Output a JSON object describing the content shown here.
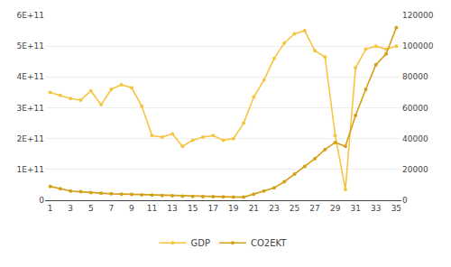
{
  "chart_data": {
    "type": "line",
    "x": [
      1,
      2,
      3,
      4,
      5,
      6,
      7,
      8,
      9,
      10,
      11,
      12,
      13,
      14,
      15,
      16,
      17,
      18,
      19,
      20,
      21,
      22,
      23,
      24,
      25,
      26,
      27,
      28,
      29,
      30,
      31,
      32,
      33,
      34,
      35
    ],
    "series": [
      {
        "name": "GDP",
        "color": "#F5C542",
        "values": [
          350000000000.0,
          340000000000.0,
          330000000000.0,
          325000000000.0,
          355000000000.0,
          310000000000.0,
          360000000000.0,
          375000000000.0,
          365000000000.0,
          305000000000.0,
          210000000000.0,
          205000000000.0,
          215000000000.0,
          175000000000.0,
          195000000000.0,
          205000000000.0,
          210000000000.0,
          195000000000.0,
          200000000000.0,
          250000000000.0,
          335000000000.0,
          390000000000.0,
          460000000000.0,
          510000000000.0,
          540000000000.0,
          550000000000.0,
          485000000000.0,
          465000000000.0,
          210000000000.0,
          35000000000.0,
          430000000000.0,
          490000000000.0,
          500000000000.0,
          490000000000.0,
          500000000000.0
        ]
      },
      {
        "name": "CO2EKT",
        "color": "#D4A017",
        "axis": "y2",
        "values": [
          9000,
          7500,
          6000,
          5500,
          5000,
          4500,
          4200,
          4000,
          3800,
          3500,
          3300,
          3100,
          2900,
          2700,
          2500,
          2400,
          2300,
          2200,
          2100,
          2000,
          4000,
          6000,
          8000,
          12000,
          17000,
          22000,
          27000,
          33000,
          37500,
          35000,
          55000,
          72000,
          88000,
          95000,
          112000
        ]
      }
    ],
    "xlim": [
      0.5,
      35.5
    ],
    "xticks": [
      1,
      3,
      5,
      7,
      9,
      11,
      13,
      15,
      17,
      19,
      21,
      23,
      25,
      27,
      29,
      31,
      33,
      35
    ],
    "ylim": [
      0,
      600000000000.0
    ],
    "yticks": [
      0,
      {
        "value": 100000000000.0,
        "label": "1E+11"
      },
      {
        "value": 200000000000.0,
        "label": "2E+11"
      },
      {
        "value": 300000000000.0,
        "label": "3E+11"
      },
      {
        "value": 400000000000.0,
        "label": "4E+11"
      },
      {
        "value": 500000000000.0,
        "label": "5E+11"
      },
      {
        "value": 600000000000.0,
        "label": "6E+11"
      }
    ],
    "y2lim": [
      0,
      120000
    ],
    "y2ticks": [
      0,
      20000,
      40000,
      60000,
      80000,
      100000,
      120000
    ],
    "grid": true,
    "legend": "bottom",
    "marker": "circle"
  }
}
